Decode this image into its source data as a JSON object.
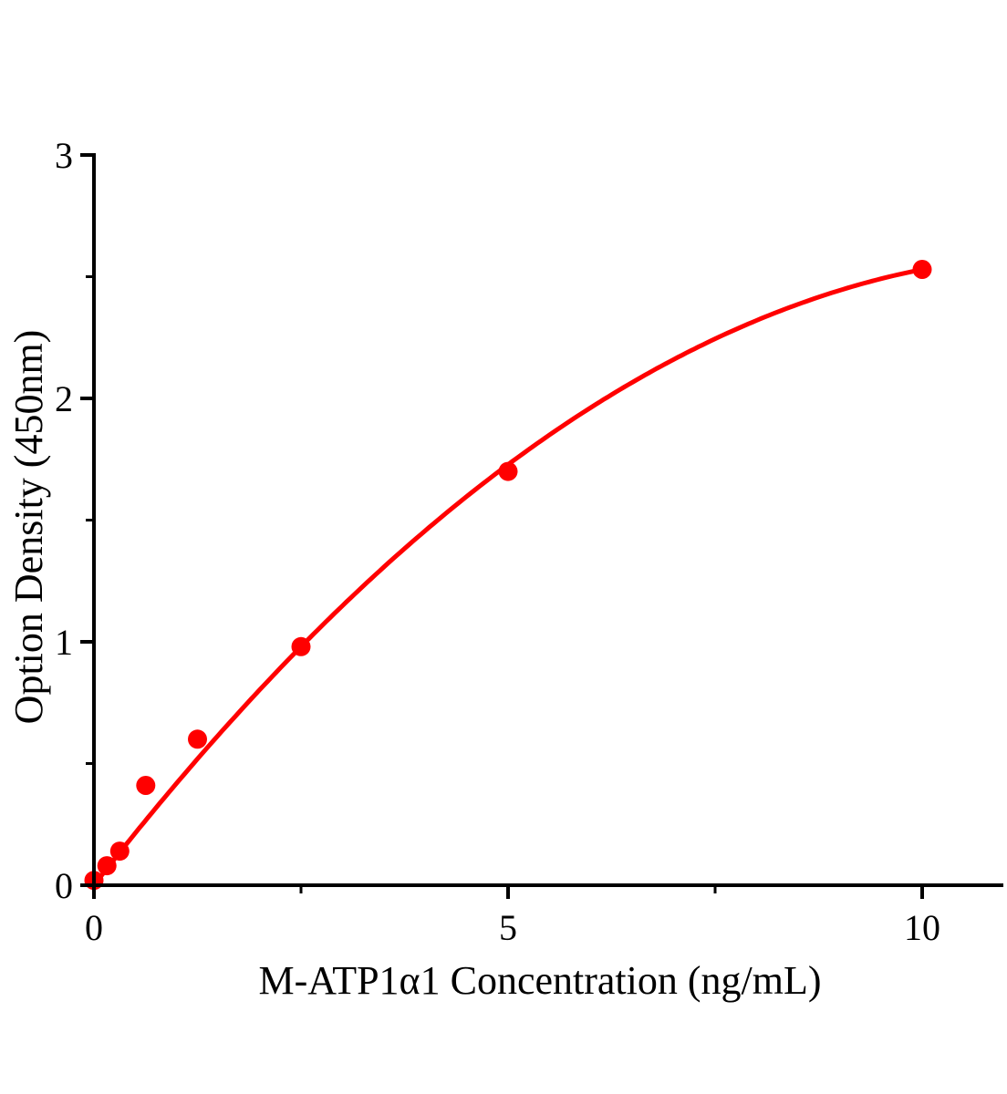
{
  "figure": {
    "background": "#ffffff"
  },
  "chart_data": {
    "type": "scatter",
    "title": "",
    "xlabel": "M-ATP1α1 Concentration (ng/mL)",
    "ylabel": "Option Density (450nm)",
    "xlim": [
      0,
      10.96
    ],
    "ylim": [
      0,
      3
    ],
    "grid": false,
    "legend_position": "none",
    "axis_color": "#000000",
    "point_color": "#ff0000",
    "curve_color": "#ff0000",
    "x_ticks": {
      "major": [
        0,
        5,
        10
      ],
      "major_labels": [
        "0",
        "5",
        "10"
      ],
      "minor": [
        2.5,
        7.5
      ]
    },
    "y_ticks": {
      "major": [
        0,
        1,
        2,
        3
      ],
      "major_labels": [
        "0",
        "1",
        "2",
        "3"
      ],
      "minor": [
        0.5,
        1.5,
        2.5
      ]
    },
    "series": [
      {
        "marker": "circle",
        "color": "#ff0000",
        "points": [
          {
            "x": 0,
            "y": 0.02
          },
          {
            "x": 0.156,
            "y": 0.08
          },
          {
            "x": 0.312,
            "y": 0.14
          },
          {
            "x": 0.625,
            "y": 0.41
          },
          {
            "x": 1.25,
            "y": 0.6
          },
          {
            "x": 2.5,
            "y": 0.98
          },
          {
            "x": 5,
            "y": 1.7
          },
          {
            "x": 10,
            "y": 2.53
          }
        ]
      }
    ],
    "fit_curve": {
      "model": "quadratic",
      "a": 0.4383,
      "b": -0.018533,
      "x_range": [
        0,
        10
      ],
      "color": "#ff0000"
    }
  }
}
